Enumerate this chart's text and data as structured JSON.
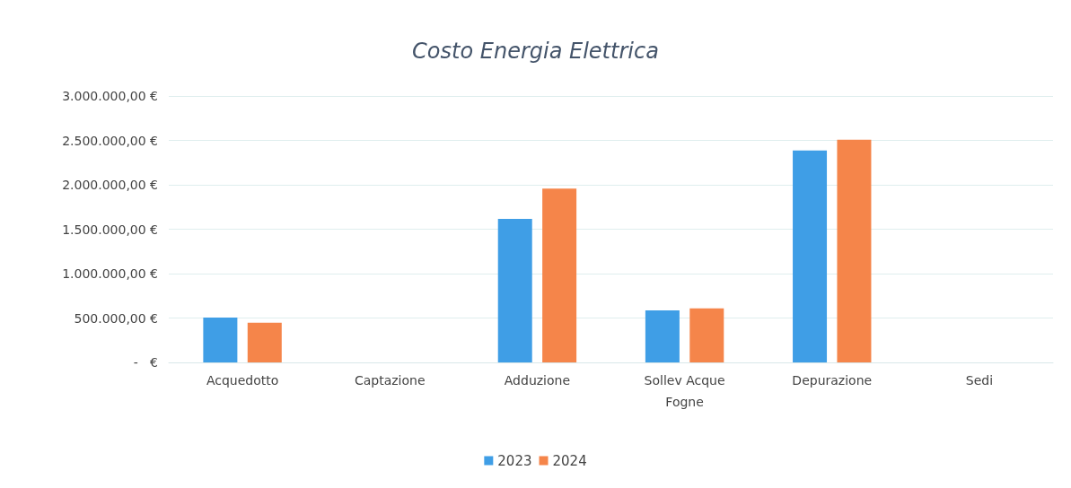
{
  "chart_data": {
    "type": "bar",
    "title": "Costo Energia Elettrica",
    "categories": [
      "Acquedotto",
      "Captazione",
      "Adduzione",
      "Sollev Acque\nFogne",
      "Depurazione",
      "Sedi"
    ],
    "series": [
      {
        "name": "2023",
        "color": "#3f9ee6",
        "values": [
          505000,
          null,
          1615000,
          586000,
          2387000,
          null
        ]
      },
      {
        "name": "2024",
        "color": "#f5854a",
        "values": [
          446000,
          null,
          1957000,
          609000,
          2508000,
          null
        ]
      }
    ],
    "ylim": [
      0,
      3000000
    ],
    "yticks": [
      {
        "value": 0,
        "label": " -   €"
      },
      {
        "value": 500000,
        "label": "500.000,00 €"
      },
      {
        "value": 1000000,
        "label": "1.000.000,00 €"
      },
      {
        "value": 1500000,
        "label": "1.500.000,00 €"
      },
      {
        "value": 2000000,
        "label": "2.000.000,00 €"
      },
      {
        "value": 2500000,
        "label": "2.500.000,00 €"
      },
      {
        "value": 3000000,
        "label": "3.000.000,00 €"
      }
    ],
    "grid": "y",
    "legend": "bottom"
  }
}
